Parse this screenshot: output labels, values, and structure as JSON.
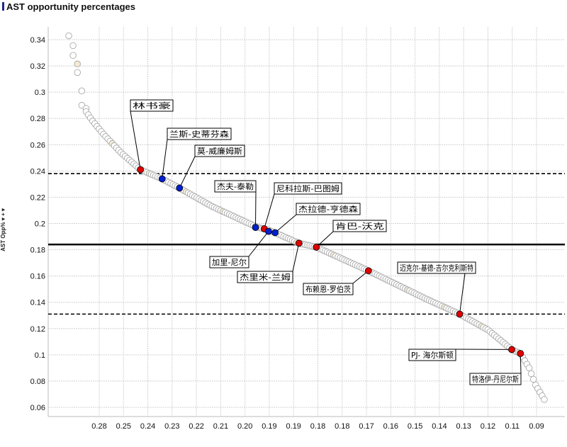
{
  "chart_data": {
    "type": "scatter",
    "title": "AST opportunity  percentages",
    "ylabel": "AST Opp%",
    "ylabel_controls": "▾ + ▾",
    "xlabel": "",
    "ylim": [
      0.05,
      0.355
    ],
    "y_ticks": [
      "0.34",
      "0.32",
      "0.3",
      "0.28",
      "0.26",
      "0.24",
      "0.22",
      "0.2",
      "0.18",
      "0.16",
      "0.14",
      "0.12",
      "0.1",
      "0.08",
      "0.06"
    ],
    "x_ticks": [
      "0.28",
      "0.25",
      "0.24",
      "0.23",
      "0.22",
      "0.21",
      "0.20",
      "0.19",
      "0.19",
      "0.18",
      "0.18",
      "0.17",
      "0.16",
      "0.15",
      "0.14",
      "0.13",
      "0.12",
      "0.11",
      "0.09"
    ],
    "grid": true,
    "player_count": 220,
    "curve_rank_value": [
      [
        0,
        0.343
      ],
      [
        2,
        0.328
      ],
      [
        4,
        0.315
      ],
      [
        5,
        0.301
      ],
      [
        6,
        0.29
      ],
      [
        11,
        0.278
      ],
      [
        16,
        0.268
      ],
      [
        24,
        0.254
      ],
      [
        33,
        0.241
      ],
      [
        43,
        0.234
      ],
      [
        51,
        0.227
      ],
      [
        66,
        0.213
      ],
      [
        87,
        0.197
      ],
      [
        92,
        0.195
      ],
      [
        95,
        0.193
      ],
      [
        106,
        0.185
      ],
      [
        114,
        0.182
      ],
      [
        138,
        0.164
      ],
      [
        164,
        0.143
      ],
      [
        180,
        0.131
      ],
      [
        193,
        0.119
      ],
      [
        204,
        0.104
      ],
      [
        208,
        0.101
      ],
      [
        212,
        0.09
      ],
      [
        215,
        0.077
      ],
      [
        219,
        0.066
      ]
    ],
    "reference_lines": [
      {
        "value": 0.238,
        "style": "dashed"
      },
      {
        "value": 0.184,
        "style": "solid"
      },
      {
        "value": 0.131,
        "style": "dashed"
      }
    ],
    "highlighted": [
      {
        "name": "林书豪",
        "rank": 33,
        "value": 0.241,
        "color": "#e00000"
      },
      {
        "name": "兰斯-史蒂芬森",
        "rank": 43,
        "value": 0.234,
        "color": "#0020d0"
      },
      {
        "name": "莫-威廉姆斯",
        "rank": 51,
        "value": 0.227,
        "color": "#0020d0"
      },
      {
        "name": "杰夫-泰勒",
        "rank": 86,
        "value": 0.197,
        "color": "#0020d0"
      },
      {
        "name": "尼科拉斯-巴图姆",
        "rank": 90,
        "value": 0.196,
        "color": "#e00000"
      },
      {
        "name": "加里-尼尔",
        "rank": 92,
        "value": 0.194,
        "color": "#0020d0"
      },
      {
        "name": "杰拉德-亨德森",
        "rank": 95,
        "value": 0.193,
        "color": "#0020d0"
      },
      {
        "name": "杰里米-兰姆",
        "rank": 106,
        "value": 0.185,
        "color": "#e00000"
      },
      {
        "name": "肯巴-沃克",
        "rank": 114,
        "value": 0.182,
        "color": "#e00000"
      },
      {
        "name": "布赖恩-罗伯茨",
        "rank": 138,
        "value": 0.164,
        "color": "#e00000"
      },
      {
        "name": "迈克尔-基德-吉尔克利斯特",
        "rank": 180,
        "value": 0.131,
        "color": "#e00000"
      },
      {
        "name": "PJ- 海尔斯顿",
        "rank": 204,
        "value": 0.104,
        "color": "#e00000"
      },
      {
        "name": "特洛伊-丹尼尔斯",
        "rank": 208,
        "value": 0.101,
        "color": "#e00000"
      }
    ]
  }
}
